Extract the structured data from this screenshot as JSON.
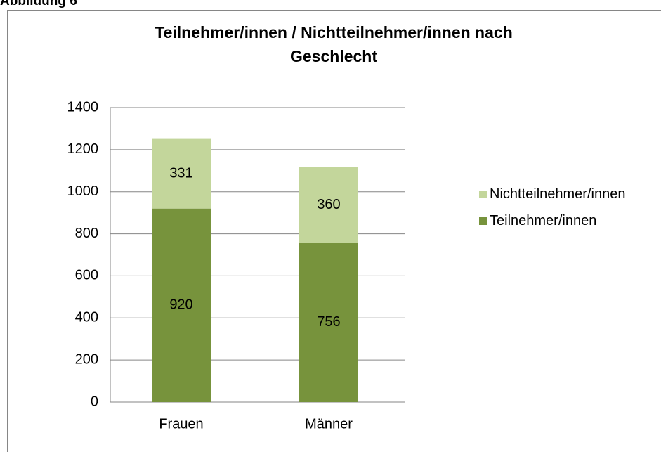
{
  "caption": "Abbildung 6",
  "chart_data": {
    "type": "stacked-bar",
    "title": "Teilnehmer/innen / Nichtteilnehmer/innen nach Geschlecht",
    "categories": [
      "Frauen",
      "Männer"
    ],
    "series": [
      {
        "name": "Teilnehmer/innen",
        "color": "#77933c",
        "values": [
          920,
          756
        ]
      },
      {
        "name": "Nichtteilnehmer/innen",
        "color": "#c3d69b",
        "values": [
          331,
          360
        ]
      }
    ],
    "ylim": [
      0,
      1400
    ],
    "yticks": [
      0,
      200,
      400,
      600,
      800,
      1000,
      1200,
      1400
    ],
    "grid": true,
    "legend": "right"
  }
}
